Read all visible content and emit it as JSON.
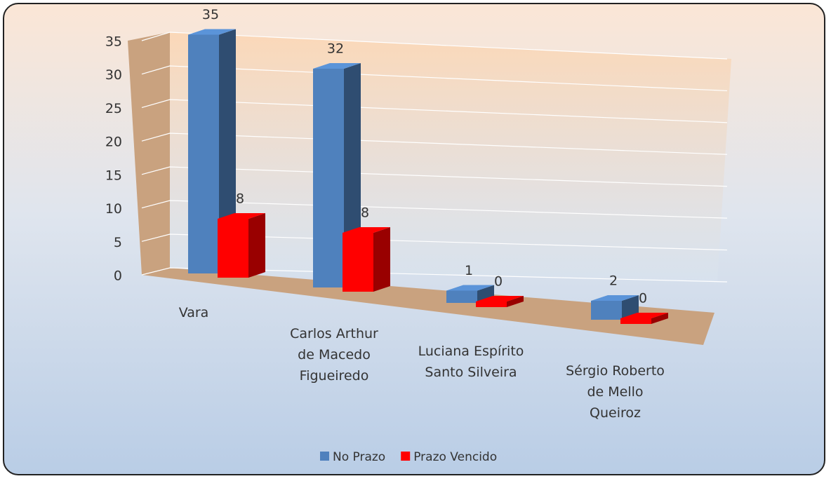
{
  "chart_data": {
    "type": "bar3d",
    "categories": [
      "Vara",
      "Carlos Arthur de Macedo Figueiredo",
      "Luciana Espírito Santo Silveira",
      "Sérgio Roberto de Mello Queiroz"
    ],
    "series": [
      {
        "name": "No Prazo",
        "color": "#4f81bd",
        "values": [
          35,
          32,
          1,
          2
        ]
      },
      {
        "name": "Prazo Vencido",
        "color": "#ff0000",
        "values": [
          8,
          8,
          0,
          0
        ]
      }
    ],
    "ylim": [
      0,
      35
    ],
    "yticks": [
      0,
      5,
      10,
      15,
      20,
      25,
      30,
      35
    ],
    "grid": true,
    "legend": "bottom"
  }
}
